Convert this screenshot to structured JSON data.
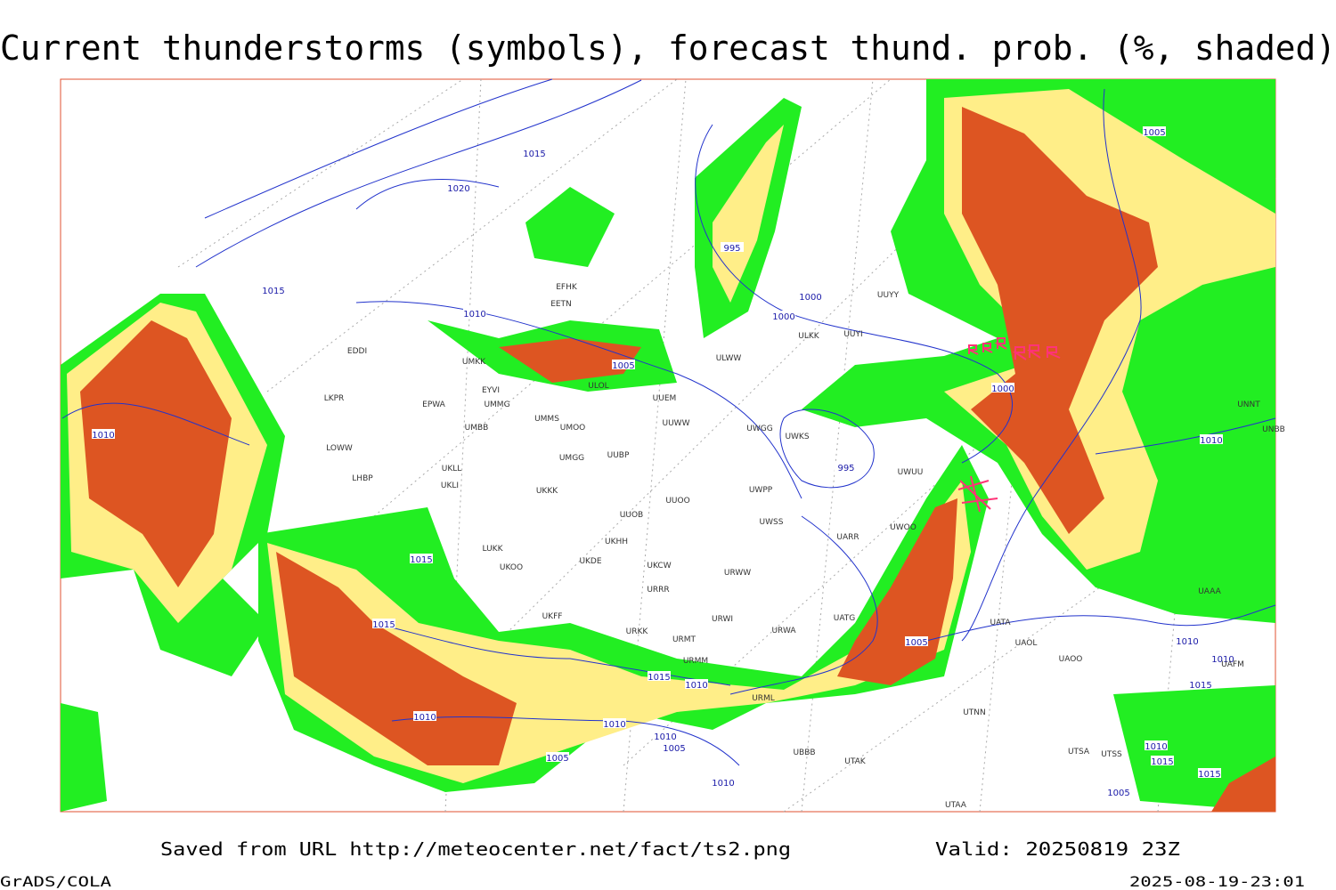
{
  "header": {
    "title": "Current thunderstorms (symbols), forecast thund. prob. (%, shaded)"
  },
  "footer": {
    "source": "Saved from URL http://meteocenter.net/fact/ts2.png",
    "valid": "Valid: 20250819 23Z",
    "software": "GrADS/COLA",
    "timestamp": "2025-08-19-23:01"
  },
  "isobars": {
    "labels": [
      1015,
      1020,
      1015,
      1010,
      995,
      1000,
      1000,
      1005,
      1000,
      1005,
      1010,
      1010,
      995,
      1015,
      1015,
      1005,
      1010,
      1010,
      1015,
      1015,
      1010,
      1010,
      1010,
      1010,
      1005,
      1005,
      1010,
      1015,
      1015,
      1010,
      1005
    ]
  },
  "stations": {
    "codes": [
      "EFHK",
      "EETN",
      "LKPR",
      "EPWA",
      "UMMG",
      "UMMS",
      "UMOO",
      "UMBB",
      "LOWW",
      "UKLL",
      "UKLI",
      "LHBP",
      "UKKK",
      "UMGG",
      "UUBP",
      "UUEM",
      "UUWW",
      "UUOB",
      "UUOO",
      "LUKK",
      "UKHH",
      "UKOO",
      "UKDE",
      "UKCW",
      "URRR",
      "UKFF",
      "URKK",
      "URMT",
      "URMM",
      "URWI",
      "URWA",
      "URML",
      "UBBB",
      "UTAK",
      "UATG",
      "UATA",
      "UAOL",
      "UAOO",
      "UTNN",
      "UTSA",
      "UTSS",
      "UTAA",
      "UARR",
      "URWW",
      "UWSS",
      "UWPP",
      "UWGG",
      "UWKS",
      "UWUU",
      "UWOO",
      "UUYY",
      "ULKK",
      "UUYI",
      "ULWW",
      "ULOL",
      "UMKK",
      "EYVI",
      "EDDI",
      "UNBB",
      "UNNT",
      "UAAA",
      "UAFM"
    ]
  }
}
